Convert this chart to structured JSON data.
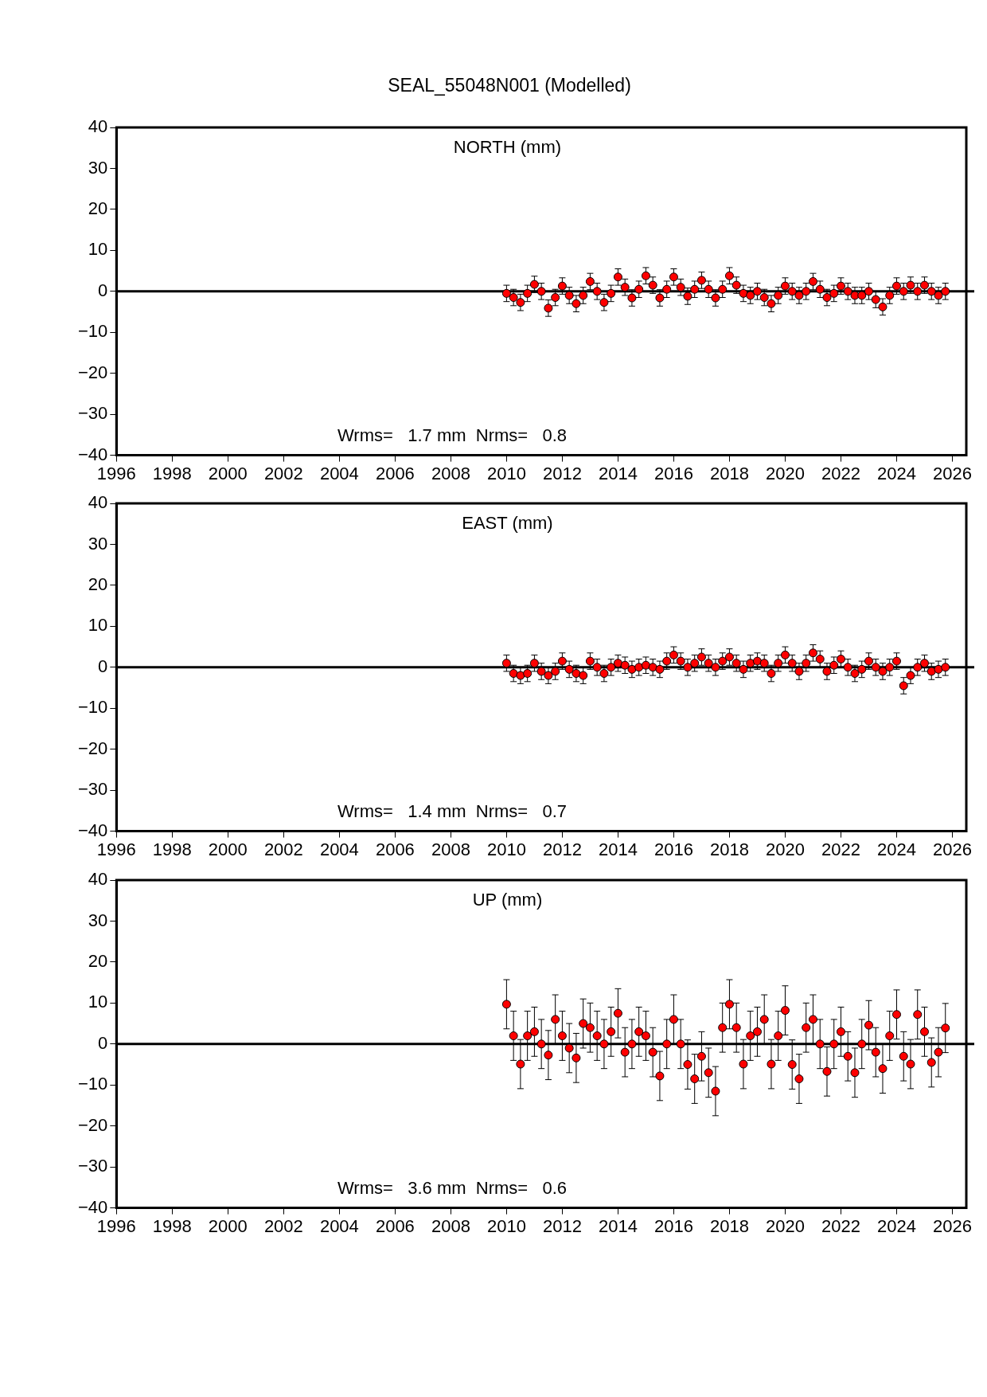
{
  "chart_data": [
    {
      "type": "scatter",
      "title": "SEAL_55048N001 (Modelled)",
      "subtitle": "NORTH (mm)",
      "annotations": [
        "Wrms=   1.7 mm  Nrms=   0.8"
      ],
      "marker": "circle",
      "xlim": [
        1996,
        2026.5
      ],
      "xticks": [
        1996,
        1998,
        2000,
        2002,
        2004,
        2006,
        2008,
        2010,
        2012,
        2014,
        2016,
        2018,
        2020,
        2022,
        2024,
        2026
      ],
      "ylim": [
        -40,
        40
      ],
      "yticks": [
        {
          "value": -40,
          "label": "−40"
        },
        {
          "value": -30,
          "label": "−30"
        },
        {
          "value": -20,
          "label": "−20"
        },
        {
          "value": -10,
          "label": "−10"
        },
        0,
        10,
        20,
        30,
        40
      ],
      "ref_lines": [
        {
          "axis": "y",
          "value": 0,
          "color": "#000000"
        }
      ],
      "x": [
        2010,
        2010.25,
        2010.5,
        2010.75,
        2011,
        2011.25,
        2011.5,
        2011.75,
        2012,
        2012.25,
        2012.5,
        2012.75,
        2013,
        2013.25,
        2013.5,
        2013.75,
        2014,
        2014.25,
        2014.5,
        2014.75,
        2015,
        2015.25,
        2015.5,
        2015.75,
        2016,
        2016.25,
        2016.5,
        2016.75,
        2017,
        2017.25,
        2017.5,
        2017.75,
        2018,
        2018.25,
        2018.5,
        2018.75,
        2019,
        2019.25,
        2019.5,
        2019.75,
        2020,
        2020.25,
        2020.5,
        2020.75,
        2021,
        2021.25,
        2021.5,
        2021.75,
        2022,
        2022.25,
        2022.5,
        2022.75,
        2023,
        2023.25,
        2023.5,
        2023.75,
        2024,
        2024.25,
        2024.5,
        2024.75,
        2025,
        2025.25,
        2025.5,
        2025.75
      ],
      "series": [
        {
          "color": "#ff0000",
          "values": [
            -0.5,
            -1.5,
            -2.7,
            -0.5,
            1.7,
            0,
            -4.1,
            -1.5,
            1.3,
            -1,
            -3,
            -1,
            2.4,
            0,
            -2.7,
            -0.5,
            3.5,
            1,
            -1.6,
            0.5,
            3.8,
            1.5,
            -1.6,
            0.5,
            3.5,
            1,
            -1.2,
            0.5,
            2.7,
            0.5,
            -1.6,
            0.5,
            3.8,
            1.5,
            -0.5,
            -1,
            0,
            -1.5,
            -3,
            -1,
            1.3,
            0,
            -1,
            0,
            2.4,
            0.5,
            -1.5,
            -0.5,
            1.3,
            0,
            -1,
            -1,
            0,
            -2,
            -3.8,
            -1,
            1.3,
            0,
            1.5,
            0,
            1.5,
            0,
            -1,
            0
          ],
          "errors": [
            2,
            2,
            2,
            2,
            2,
            2,
            2,
            2,
            2,
            2,
            2,
            2,
            2,
            2,
            2,
            2,
            2,
            2,
            2,
            2,
            2,
            2,
            2,
            2,
            2,
            2,
            2,
            2,
            2,
            2,
            2,
            2,
            2,
            2,
            2,
            2,
            2,
            2,
            2,
            2,
            2,
            2,
            2,
            2,
            2,
            2,
            2,
            2,
            2,
            2,
            2,
            2,
            2,
            2,
            2,
            2,
            2,
            2,
            2,
            2,
            2,
            2,
            2,
            2
          ]
        }
      ]
    },
    {
      "type": "scatter",
      "subtitle": "EAST (mm)",
      "annotations": [
        "Wrms=   1.4 mm  Nrms=   0.7"
      ],
      "marker": "circle",
      "xlim": [
        1996,
        2026.5
      ],
      "xticks": [
        1996,
        1998,
        2000,
        2002,
        2004,
        2006,
        2008,
        2010,
        2012,
        2014,
        2016,
        2018,
        2020,
        2022,
        2024,
        2026
      ],
      "ylim": [
        -40,
        40
      ],
      "yticks": [
        {
          "value": -40,
          "label": "−40"
        },
        {
          "value": -30,
          "label": "−30"
        },
        {
          "value": -20,
          "label": "−20"
        },
        {
          "value": -10,
          "label": "−10"
        },
        0,
        10,
        20,
        30,
        40
      ],
      "ref_lines": [
        {
          "axis": "y",
          "value": 0,
          "color": "#000000"
        }
      ],
      "x": [
        2010,
        2010.25,
        2010.5,
        2010.75,
        2011,
        2011.25,
        2011.5,
        2011.75,
        2012,
        2012.25,
        2012.5,
        2012.75,
        2013,
        2013.25,
        2013.5,
        2013.75,
        2014,
        2014.25,
        2014.5,
        2014.75,
        2015,
        2015.25,
        2015.5,
        2015.75,
        2016,
        2016.25,
        2016.5,
        2016.75,
        2017,
        2017.25,
        2017.5,
        2017.75,
        2018,
        2018.25,
        2018.5,
        2018.75,
        2019,
        2019.25,
        2019.5,
        2019.75,
        2020,
        2020.25,
        2020.5,
        2020.75,
        2021,
        2021.25,
        2021.5,
        2021.75,
        2022,
        2022.25,
        2022.5,
        2022.75,
        2023,
        2023.25,
        2023.5,
        2023.75,
        2024,
        2024.25,
        2024.5,
        2024.75,
        2025,
        2025.25,
        2025.5,
        2025.75
      ],
      "series": [
        {
          "color": "#ff0000",
          "values": [
            1,
            -1.5,
            -2,
            -1.5,
            1,
            -1,
            -2,
            -1,
            1.5,
            -0.5,
            -1.5,
            -2,
            1.5,
            0,
            -1.5,
            0,
            1,
            0.5,
            -0.5,
            0,
            0.5,
            0,
            -0.5,
            1.5,
            3,
            1.5,
            0,
            1,
            2.5,
            1,
            0,
            1.5,
            2.5,
            1,
            -0.5,
            1,
            1.5,
            1,
            -1.5,
            1,
            3,
            1,
            -1,
            1,
            3.5,
            2,
            -1,
            0.5,
            2,
            0,
            -1.5,
            -0.5,
            1.5,
            0,
            -1,
            0,
            1.5,
            -4.5,
            -2,
            0,
            1,
            -1,
            -0.5,
            0
          ],
          "errors": [
            2,
            2,
            2,
            2,
            2,
            2,
            2,
            2,
            2,
            2,
            2,
            2,
            2,
            2,
            2,
            2,
            2,
            2,
            2,
            2,
            2,
            2,
            2,
            2,
            2,
            2,
            2,
            2,
            2,
            2,
            2,
            2,
            2,
            2,
            2,
            2,
            2,
            2,
            2,
            2,
            2,
            2,
            2,
            2,
            2,
            2,
            2,
            2,
            2,
            2,
            2,
            2,
            2,
            2,
            2,
            2,
            2,
            2,
            2,
            2,
            2,
            2,
            2,
            2
          ]
        }
      ]
    },
    {
      "type": "scatter",
      "subtitle": "UP (mm)",
      "annotations": [
        "Wrms=   3.6 mm  Nrms=   0.6"
      ],
      "marker": "circle",
      "xlim": [
        1996,
        2026.5
      ],
      "xticks": [
        1996,
        1998,
        2000,
        2002,
        2004,
        2006,
        2008,
        2010,
        2012,
        2014,
        2016,
        2018,
        2020,
        2022,
        2024,
        2026
      ],
      "ylim": [
        -40,
        40
      ],
      "yticks": [
        {
          "value": -40,
          "label": "−40"
        },
        {
          "value": -30,
          "label": "−30"
        },
        {
          "value": -20,
          "label": "−20"
        },
        {
          "value": -10,
          "label": "−10"
        },
        0,
        10,
        20,
        30,
        40
      ],
      "ref_lines": [
        {
          "axis": "y",
          "value": 0,
          "color": "#000000"
        }
      ],
      "x": [
        2010,
        2010.25,
        2010.5,
        2010.75,
        2011,
        2011.25,
        2011.5,
        2011.75,
        2012,
        2012.25,
        2012.5,
        2012.75,
        2013,
        2013.25,
        2013.5,
        2013.75,
        2014,
        2014.25,
        2014.5,
        2014.75,
        2015,
        2015.25,
        2015.5,
        2015.75,
        2016,
        2016.25,
        2016.5,
        2016.75,
        2017,
        2017.25,
        2017.5,
        2017.75,
        2018,
        2018.25,
        2018.5,
        2018.75,
        2019,
        2019.25,
        2019.5,
        2019.75,
        2020,
        2020.25,
        2020.5,
        2020.75,
        2021,
        2021.25,
        2021.5,
        2021.75,
        2022,
        2022.25,
        2022.5,
        2022.75,
        2023,
        2023.25,
        2023.5,
        2023.75,
        2024,
        2024.25,
        2024.5,
        2024.75,
        2025,
        2025.25,
        2025.5,
        2025.75
      ],
      "series": [
        {
          "color": "#ff0000",
          "values": [
            9.7,
            2,
            -4.9,
            2,
            3,
            0,
            -2.7,
            6,
            2,
            -1,
            -3.4,
            5,
            4,
            2,
            0,
            3,
            7.5,
            -2,
            0,
            3,
            2,
            -2,
            -7.8,
            0,
            6,
            0,
            -5,
            -8.5,
            -3,
            -7,
            -11.5,
            4,
            9.7,
            4,
            -4.9,
            2,
            3,
            6,
            -4.9,
            2,
            8.2,
            -5,
            -8.5,
            4,
            6,
            0,
            -6.7,
            0,
            3,
            -3,
            -7,
            0,
            4.6,
            -2,
            -6,
            2,
            7.2,
            -3,
            -4.9,
            7.2,
            3,
            -4.5,
            -2,
            3.9
          ],
          "errors": [
            6,
            6,
            6,
            6,
            6,
            6,
            6,
            6,
            6,
            6,
            6,
            6,
            6,
            6,
            6,
            6,
            6,
            6,
            6,
            6,
            6,
            6,
            6,
            6,
            6,
            6,
            6,
            6,
            6,
            6,
            6,
            6,
            6,
            6,
            6,
            6,
            6,
            6,
            6,
            6,
            6,
            6,
            6,
            6,
            6,
            6,
            6,
            6,
            6,
            6,
            6,
            6,
            6,
            6,
            6,
            6,
            6,
            6,
            6,
            6,
            6,
            6,
            6,
            6
          ]
        }
      ]
    }
  ]
}
